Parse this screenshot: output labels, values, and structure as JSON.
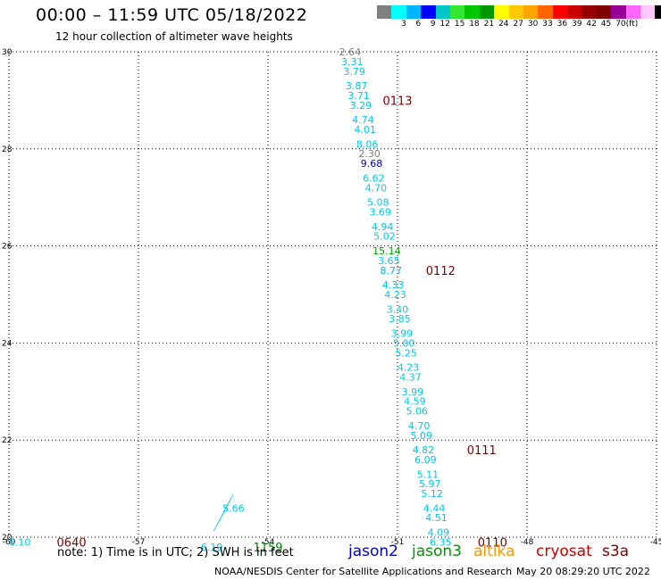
{
  "header": {
    "title": "00:00 – 11:59 UTC 05/18/2022",
    "subtitle": "12 hour collection of altimeter wave heights"
  },
  "colorbar": {
    "colors": [
      "#808080",
      "#00ffff",
      "#00b4ff",
      "#0000ff",
      "#00c8c8",
      "#32e632",
      "#00c800",
      "#009600",
      "#ffff00",
      "#ffc800",
      "#ffa500",
      "#ff6400",
      "#ff0000",
      "#c80000",
      "#960000",
      "#800000",
      "#960096",
      "#ff64ff",
      "#ffc8ff",
      "#000000"
    ],
    "labels": [
      "",
      "3",
      "6",
      "9",
      "12",
      "15",
      "18",
      "21",
      "24",
      "27",
      "30",
      "33",
      "36",
      "39",
      "42",
      "45",
      "70",
      "(ft)"
    ]
  },
  "chart_data": {
    "type": "scatter",
    "title": "",
    "xlim": [
      -60,
      -45
    ],
    "ylim": [
      20,
      30
    ],
    "x_ticks": [
      "-60",
      "-57",
      "-54",
      "-51",
      "-48",
      "-45"
    ],
    "y_ticks": [
      "30",
      "28",
      "26",
      "24",
      "22",
      "20"
    ],
    "grid": true,
    "observations": [
      {
        "x": -52.1,
        "y": 30.0,
        "text": "2.64",
        "color": "#808080"
      },
      {
        "x": -52.05,
        "y": 29.8,
        "text": "3.31",
        "color": "#00c8e6"
      },
      {
        "x": -52.0,
        "y": 29.6,
        "text": "3.79",
        "color": "#00c8e6"
      },
      {
        "x": -51.95,
        "y": 29.3,
        "text": "3.87",
        "color": "#00c8e6"
      },
      {
        "x": -51.9,
        "y": 29.1,
        "text": "3.71",
        "color": "#00c8e6"
      },
      {
        "x": -51.85,
        "y": 28.9,
        "text": "3.29",
        "color": "#00c8e6"
      },
      {
        "x": -51.8,
        "y": 28.6,
        "text": "4.74",
        "color": "#00c8e6"
      },
      {
        "x": -51.75,
        "y": 28.4,
        "text": "4.01",
        "color": "#00c8e6"
      },
      {
        "x": -51.7,
        "y": 28.1,
        "text": "8.06",
        "color": "#00c8e6"
      },
      {
        "x": -51.65,
        "y": 27.9,
        "text": "2.30",
        "color": "#808080"
      },
      {
        "x": -51.6,
        "y": 27.7,
        "text": "9.68",
        "color": "#0000c8"
      },
      {
        "x": -51.55,
        "y": 27.4,
        "text": "6.62",
        "color": "#00c8e6"
      },
      {
        "x": -51.5,
        "y": 27.2,
        "text": "4.70",
        "color": "#00c8e6"
      },
      {
        "x": -51.45,
        "y": 26.9,
        "text": "5.08",
        "color": "#00c8e6"
      },
      {
        "x": -51.4,
        "y": 26.7,
        "text": "3.69",
        "color": "#00c8e6"
      },
      {
        "x": -51.35,
        "y": 26.4,
        "text": "4.94",
        "color": "#00c8e6"
      },
      {
        "x": -51.3,
        "y": 26.2,
        "text": "5.02",
        "color": "#00c8e6"
      },
      {
        "x": -51.25,
        "y": 25.9,
        "text": "15.14",
        "color": "#00a000"
      },
      {
        "x": -51.2,
        "y": 25.7,
        "text": "3.65",
        "color": "#00c8e6"
      },
      {
        "x": -51.15,
        "y": 25.5,
        "text": "8.77",
        "color": "#00b4ff"
      },
      {
        "x": -51.1,
        "y": 25.2,
        "text": "4.33",
        "color": "#00c8e6"
      },
      {
        "x": -51.05,
        "y": 25.0,
        "text": "4.23",
        "color": "#00c8e6"
      },
      {
        "x": -51.0,
        "y": 24.7,
        "text": "3.40",
        "color": "#00c8e6"
      },
      {
        "x": -50.95,
        "y": 24.5,
        "text": "3.85",
        "color": "#00c8e6"
      },
      {
        "x": -50.9,
        "y": 24.2,
        "text": "3.99",
        "color": "#00c8e6"
      },
      {
        "x": -50.85,
        "y": 24.0,
        "text": "5.00",
        "color": "#00c8e6"
      },
      {
        "x": -50.8,
        "y": 23.8,
        "text": "5.25",
        "color": "#00c8e6"
      },
      {
        "x": -50.75,
        "y": 23.5,
        "text": "4.23",
        "color": "#00c8e6"
      },
      {
        "x": -50.7,
        "y": 23.3,
        "text": "4.37",
        "color": "#00c8e6"
      },
      {
        "x": -50.65,
        "y": 23.0,
        "text": "3.99",
        "color": "#00c8e6"
      },
      {
        "x": -50.6,
        "y": 22.8,
        "text": "4.59",
        "color": "#00c8e6"
      },
      {
        "x": -50.55,
        "y": 22.6,
        "text": "5.06",
        "color": "#00c8e6"
      },
      {
        "x": -50.5,
        "y": 22.3,
        "text": "4.70",
        "color": "#00c8e6"
      },
      {
        "x": -50.45,
        "y": 22.1,
        "text": "5.09",
        "color": "#00c8e6"
      },
      {
        "x": -50.4,
        "y": 21.8,
        "text": "4.82",
        "color": "#00c8e6"
      },
      {
        "x": -50.35,
        "y": 21.6,
        "text": "6.09",
        "color": "#00c8e6"
      },
      {
        "x": -50.3,
        "y": 21.3,
        "text": "5.11",
        "color": "#00c8e6"
      },
      {
        "x": -50.25,
        "y": 21.1,
        "text": "5.97",
        "color": "#00c8e6"
      },
      {
        "x": -50.2,
        "y": 20.9,
        "text": "5.12",
        "color": "#00c8e6"
      },
      {
        "x": -50.15,
        "y": 20.6,
        "text": "4.44",
        "color": "#00c8e6"
      },
      {
        "x": -50.1,
        "y": 20.4,
        "text": "4.51",
        "color": "#00c8e6"
      },
      {
        "x": -50.05,
        "y": 20.1,
        "text": "4.09",
        "color": "#00c8e6"
      },
      {
        "x": -50.0,
        "y": 19.9,
        "text": "6.35",
        "color": "#00c8e6"
      },
      {
        "x": -59.75,
        "y": 19.9,
        "text": "6.10",
        "color": "#00c8e6"
      },
      {
        "x": -55.3,
        "y": 19.8,
        "text": "6.19",
        "color": "#00c8e6"
      },
      {
        "x": -54.8,
        "y": 20.6,
        "text": "5.66",
        "color": "#00c8e6"
      }
    ],
    "time_labels": [
      {
        "x": -51.0,
        "y": 29.0,
        "text": "0113"
      },
      {
        "x": -50.0,
        "y": 25.5,
        "text": "0112"
      },
      {
        "x": -49.05,
        "y": 21.8,
        "text": "0111"
      },
      {
        "x": -48.8,
        "y": 19.9,
        "text": "0110"
      },
      {
        "x": -58.55,
        "y": 19.9,
        "text": "0640"
      },
      {
        "x": -54.0,
        "y": 19.8,
        "text": "1159",
        "color": "#008000"
      }
    ]
  },
  "footer": {
    "note": "note: 1) Time is in UTC; 2) SWH is in feet",
    "missions": [
      {
        "label": "jason2",
        "color": "#0000c8"
      },
      {
        "label": "jason3",
        "color": "#009600"
      },
      {
        "label": "altika",
        "color": "#ff9600"
      },
      {
        "label": "cryosat",
        "color": "#c80000"
      },
      {
        "label": "s3a",
        "color": "#800000"
      }
    ],
    "credit": "NOAA/NESDIS Center for Satellite Applications and Research",
    "timestamp": "May 20 08:29:20 UTC 2022"
  }
}
